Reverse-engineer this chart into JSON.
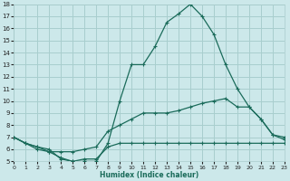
{
  "bg_color": "#cce8ea",
  "grid_color": "#a8cece",
  "line_color": "#1a6b5a",
  "xlabel": "Humidex (Indice chaleur)",
  "xlim": [
    0,
    23
  ],
  "ylim": [
    5,
    18
  ],
  "xticks": [
    0,
    1,
    2,
    3,
    4,
    5,
    6,
    7,
    8,
    9,
    10,
    11,
    12,
    13,
    14,
    15,
    16,
    17,
    18,
    19,
    20,
    21,
    22,
    23
  ],
  "yticks": [
    5,
    6,
    7,
    8,
    9,
    10,
    11,
    12,
    13,
    14,
    15,
    16,
    17,
    18
  ],
  "curve1_x": [
    0,
    1,
    2,
    3,
    4,
    5,
    6,
    7,
    8,
    9,
    10,
    11,
    12,
    13,
    14,
    15,
    16,
    17,
    18,
    19,
    20,
    21,
    22,
    23
  ],
  "curve1_y": [
    7.0,
    6.5,
    6.2,
    5.8,
    5.3,
    5.0,
    5.0,
    5.0,
    6.5,
    10.0,
    13.0,
    13.0,
    14.5,
    16.5,
    17.2,
    18.0,
    17.0,
    15.5,
    13.0,
    11.0,
    9.5,
    8.5,
    7.2,
    7.0
  ],
  "curve2_x": [
    0,
    1,
    2,
    3,
    4,
    5,
    6,
    7,
    8,
    9,
    10,
    11,
    12,
    13,
    14,
    15,
    16,
    17,
    18,
    19,
    20,
    21,
    22,
    23
  ],
  "curve2_y": [
    7.0,
    6.5,
    6.0,
    5.8,
    5.8,
    5.8,
    6.0,
    6.2,
    7.5,
    8.0,
    8.5,
    9.0,
    9.0,
    9.0,
    9.2,
    9.5,
    9.8,
    10.0,
    10.2,
    9.5,
    9.5,
    8.5,
    7.2,
    6.8
  ],
  "curve3_x": [
    0,
    1,
    2,
    3,
    4,
    5,
    6,
    7,
    8,
    9,
    10,
    11,
    12,
    13,
    14,
    15,
    16,
    17,
    18,
    19,
    20,
    21,
    22,
    23
  ],
  "curve3_y": [
    7.0,
    6.5,
    6.2,
    6.0,
    5.2,
    5.0,
    5.2,
    5.2,
    6.2,
    6.5,
    6.5,
    6.5,
    6.5,
    6.5,
    6.5,
    6.5,
    6.5,
    6.5,
    6.5,
    6.5,
    6.5,
    6.5,
    6.5,
    6.5
  ]
}
